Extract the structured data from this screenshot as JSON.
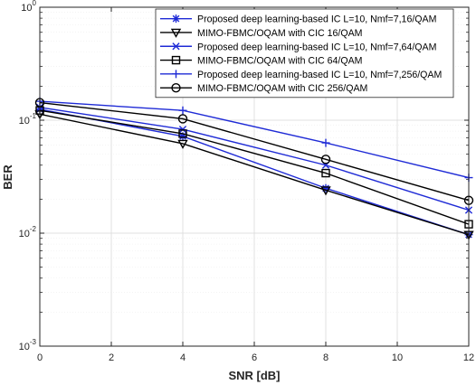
{
  "chart_data": {
    "type": "line",
    "title": "",
    "xlabel": "SNR [dB]",
    "ylabel": "BER",
    "xlim": [
      0,
      12
    ],
    "ylim": [
      0.001,
      1
    ],
    "yscale": "log",
    "grid": true,
    "legend_position": "top-right",
    "x_ticks": [
      "0",
      "2",
      "4",
      "6",
      "8",
      "10",
      "12"
    ],
    "y_ticks": [
      {
        "value": 1,
        "mantissa": "10",
        "exp": "0"
      },
      {
        "value": 0.1,
        "mantissa": "10",
        "exp": "-1"
      },
      {
        "value": 0.01,
        "mantissa": "10",
        "exp": "-2"
      },
      {
        "value": 0.001,
        "mantissa": "10",
        "exp": "-3"
      }
    ],
    "x": [
      0,
      4,
      8,
      12
    ],
    "series": [
      {
        "name": "Proposed deep learning-based IC L=10, Nmf=7,16/QAM",
        "color": "#1f2bd6",
        "marker": "asterisk",
        "values": [
          0.125,
          0.072,
          0.025,
          0.0097
        ]
      },
      {
        "name": "MIMO-FBMC/OQAM with CIC 16/QAM",
        "color": "#000000",
        "marker": "triangle-down",
        "values": [
          0.113,
          0.062,
          0.024,
          0.0097
        ]
      },
      {
        "name": "Proposed deep learning-based IC L=10, Nmf=7,64/QAM",
        "color": "#1f2bd6",
        "marker": "x",
        "values": [
          0.13,
          0.083,
          0.04,
          0.016
        ]
      },
      {
        "name": "MIMO-FBMC/OQAM with CIC 64/QAM",
        "color": "#000000",
        "marker": "square",
        "values": [
          0.122,
          0.076,
          0.034,
          0.012
        ]
      },
      {
        "name": "Proposed deep learning-based IC L=10, Nmf=7,256/QAM",
        "color": "#1f2bd6",
        "marker": "plus",
        "values": [
          0.147,
          0.122,
          0.063,
          0.031
        ]
      },
      {
        "name": "MIMO-FBMC/OQAM with CIC 256/QAM",
        "color": "#000000",
        "marker": "circle",
        "values": [
          0.143,
          0.103,
          0.045,
          0.0195
        ]
      }
    ]
  }
}
